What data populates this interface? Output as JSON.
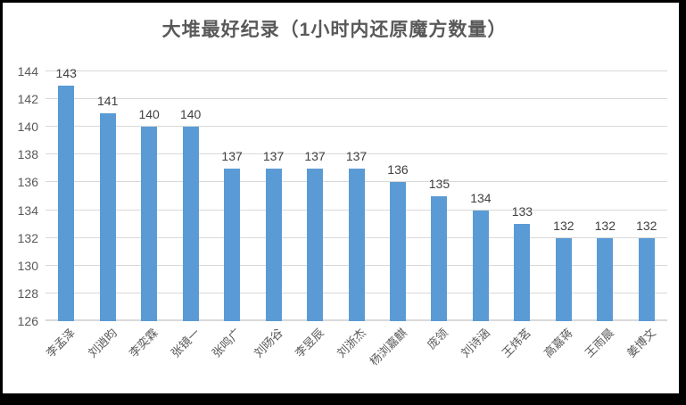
{
  "chart_data": {
    "type": "bar",
    "title": "大堆最好纪录（1小时内还原魔方数量）",
    "categories": [
      "李孟泽",
      "刘逍昀",
      "李奕霖",
      "张镜一",
      "张鸣广",
      "刘旸谷",
      "李昱辰",
      "刘浙杰",
      "杨浏嘉麒",
      "庞领",
      "刘诗涵",
      "王炜茗",
      "高嘉蒋",
      "王雨晨",
      "姜博文"
    ],
    "values": [
      143,
      141,
      140,
      140,
      137,
      137,
      137,
      137,
      136,
      135,
      134,
      133,
      132,
      132,
      132
    ],
    "xlabel": "",
    "ylabel": "",
    "ylim": [
      126,
      144
    ],
    "yticks": [
      126,
      128,
      130,
      132,
      134,
      136,
      138,
      140,
      142,
      144
    ],
    "grid": true,
    "legend": false,
    "data_labels": true,
    "bar_color": "#5B9BD5",
    "gridline_color": "#D9D9D9",
    "title_color": "#595959",
    "data_label_color": "#404040",
    "axis_tick_color": "#595959"
  }
}
